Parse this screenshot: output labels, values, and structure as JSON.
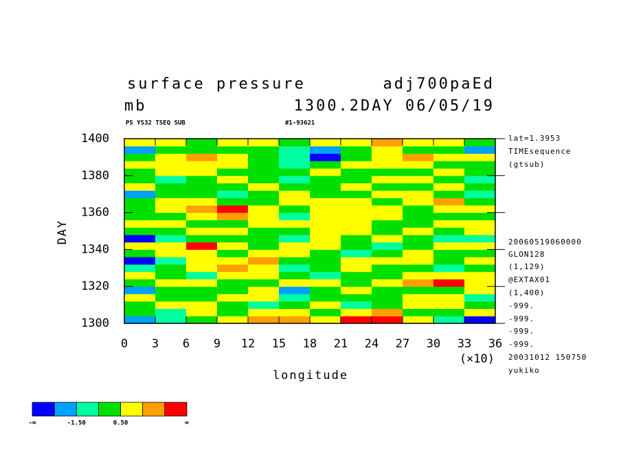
{
  "chart_data": {
    "type": "heatmap",
    "title": "surface pressure",
    "title_right": "adj700paEd",
    "units": "mb",
    "subtitle_right": "1300.2DAY 06/05/19",
    "info_left": "PS YS32 TSEQ SUB",
    "info_right": "#1-93621",
    "xlabel": "longitude",
    "ylabel": "DAY",
    "x_scale_label": "(×10)",
    "xlim": [
      0,
      36
    ],
    "xticks": [
      0,
      3,
      6,
      9,
      12,
      15,
      18,
      21,
      24,
      27,
      30,
      33,
      36
    ],
    "ylim": [
      1300,
      1400
    ],
    "yticks": [
      1300,
      1320,
      1340,
      1360,
      1380,
      1400
    ],
    "x_edges": [
      0,
      3,
      6,
      9,
      12,
      15,
      18,
      21,
      24,
      27,
      30,
      33,
      36
    ],
    "y_edges": [
      1300,
      1304,
      1308,
      1312,
      1316,
      1320,
      1324,
      1328,
      1332,
      1336,
      1340,
      1344,
      1348,
      1352,
      1356,
      1360,
      1364,
      1368,
      1372,
      1376,
      1380,
      1384,
      1388,
      1392,
      1396,
      1400
    ],
    "z": [
      [
        -1.8,
        -0.6,
        0.4,
        0.8,
        1.6,
        1.9,
        0.9,
        2.6,
        2.7,
        1.2,
        -0.7,
        -2.6
      ],
      [
        0.3,
        -0.9,
        0.6,
        0.2,
        1.2,
        0.7,
        -0.4,
        0.9,
        1.7,
        0.4,
        -0.3,
        0.5
      ],
      [
        -0.2,
        0.5,
        1.1,
        0.3,
        -0.6,
        0.2,
        0.6,
        -1.2,
        0.3,
        0.8,
        1.3,
        0.2
      ],
      [
        0.9,
        0.2,
        -0.4,
        0.7,
        1.4,
        -0.8,
        0.4,
        0.2,
        -0.5,
        1.1,
        0.6,
        -0.9
      ],
      [
        -1.7,
        -0.5,
        0.3,
        -0.2,
        0.6,
        -1.6,
        -0.3,
        0.7,
        0.2,
        -0.4,
        0.3,
        1.0
      ],
      [
        0.4,
        1.2,
        0.8,
        -0.3,
        0.2,
        0.6,
        1.0,
        0.3,
        0.8,
        1.6,
        2.6,
        0.5
      ],
      [
        0.8,
        0.3,
        -0.6,
        0.9,
        1.3,
        0.2,
        -0.7,
        0.4,
        -0.2,
        0.6,
        1.2,
        0.9
      ],
      [
        -0.6,
        0.4,
        1.0,
        1.5,
        0.7,
        -1.3,
        0.3,
        0.9,
        0.2,
        -0.5,
        -1.1,
        0.2
      ],
      [
        -2.6,
        -1.2,
        0.6,
        1.2,
        1.8,
        0.4,
        -0.2,
        0.6,
        1.3,
        0.5,
        -0.3,
        0.7
      ],
      [
        0.2,
        0.9,
        1.4,
        0.3,
        0.8,
        1.1,
        0.2,
        -0.6,
        0.4,
        1.0,
        0.4,
        -0.4
      ],
      [
        1.1,
        0.5,
        2.6,
        1.0,
        -0.4,
        0.6,
        1.2,
        0.3,
        -0.8,
        0.2,
        0.9,
        1.3
      ],
      [
        -2.7,
        -1.3,
        -0.4,
        0.3,
        0.2,
        -1.0,
        0.7,
        -0.3,
        0.6,
        -0.2,
        -1.4,
        -0.6
      ],
      [
        0.3,
        -0.2,
        0.8,
        1.2,
        0.4,
        0.1,
        1.1,
        0.5,
        0.2,
        0.8,
        0.3,
        0.6
      ],
      [
        0.6,
        1.0,
        0.4,
        -0.3,
        0.9,
        0.7,
        1.3,
        0.8,
        -0.2,
        0.4,
        0.7,
        1.1
      ],
      [
        -0.5,
        0.2,
        1.2,
        1.6,
        0.8,
        -0.6,
        0.9,
        1.4,
        0.7,
        0.3,
        -0.4,
        0.2
      ],
      [
        0.4,
        0.9,
        1.8,
        2.6,
        1.2,
        0.3,
        1.1,
        0.6,
        1.0,
        0.2,
        0.8,
        0.5
      ],
      [
        -0.3,
        0.5,
        0.9,
        0.4,
        -0.5,
        0.8,
        1.3,
        0.7,
        0.2,
        1.2,
        1.6,
        0.3
      ],
      [
        -1.6,
        -0.4,
        0.2,
        -0.6,
        0.3,
        0.6,
        0.4,
        -0.3,
        0.7,
        0.9,
        0.1,
        -0.8
      ],
      [
        0.7,
        0.2,
        -0.5,
        0.4,
        0.9,
        -0.2,
        0.3,
        0.8,
        0.4,
        -0.4,
        0.6,
        0.3
      ],
      [
        0.2,
        -0.7,
        0.3,
        0.8,
        0.2,
        -1.1,
        -0.4,
        0.3,
        0.9,
        0.5,
        -0.3,
        -1.2
      ],
      [
        -0.4,
        0.5,
        0.9,
        0.3,
        -0.3,
        0.4,
        0.8,
        0.2,
        -0.5,
        0.3,
        0.7,
        0.4
      ],
      [
        1.0,
        1.4,
        1.2,
        0.7,
        0.3,
        -0.6,
        0.4,
        0.9,
        1.3,
        0.6,
        0.2,
        -0.3
      ],
      [
        0.3,
        0.8,
        1.6,
        1.1,
        0.4,
        -1.2,
        -2.6,
        0.2,
        0.9,
        1.5,
        1.0,
        0.6
      ],
      [
        -1.8,
        -0.3,
        0.4,
        0.2,
        -0.5,
        -0.9,
        -1.7,
        -0.2,
        0.6,
        0.3,
        -0.4,
        -1.6
      ],
      [
        0.5,
        0.9,
        0.3,
        1.1,
        0.8,
        0.2,
        0.5,
        0.9,
        1.7,
        1.3,
        0.6,
        0.4
      ]
    ],
    "colorbar": {
      "bounds": [
        -2.5,
        -1.5,
        -0.5,
        0.5,
        1.5,
        2.5
      ],
      "colors": [
        "#0000ff",
        "#00a0ff",
        "#00ffa0",
        "#00e000",
        "#ffff00",
        "#ffa000",
        "#ff0000"
      ],
      "ticks": [
        {
          "value": -1.5,
          "label": "-1.50"
        },
        {
          "value": 0.5,
          "label": "0.50"
        }
      ],
      "low_label": "-∞",
      "high_label": "∞"
    },
    "annotations": [
      "lat=1.3953",
      "TIMEsequence",
      "(gtsub)",
      "20060519060000",
      "GLON128",
      "(1,129)",
      "@EXTAX01",
      "(1,400)",
      "-999.",
      "-999.",
      "-999.",
      "-999.",
      "20031012 150750",
      "yukiko"
    ]
  }
}
